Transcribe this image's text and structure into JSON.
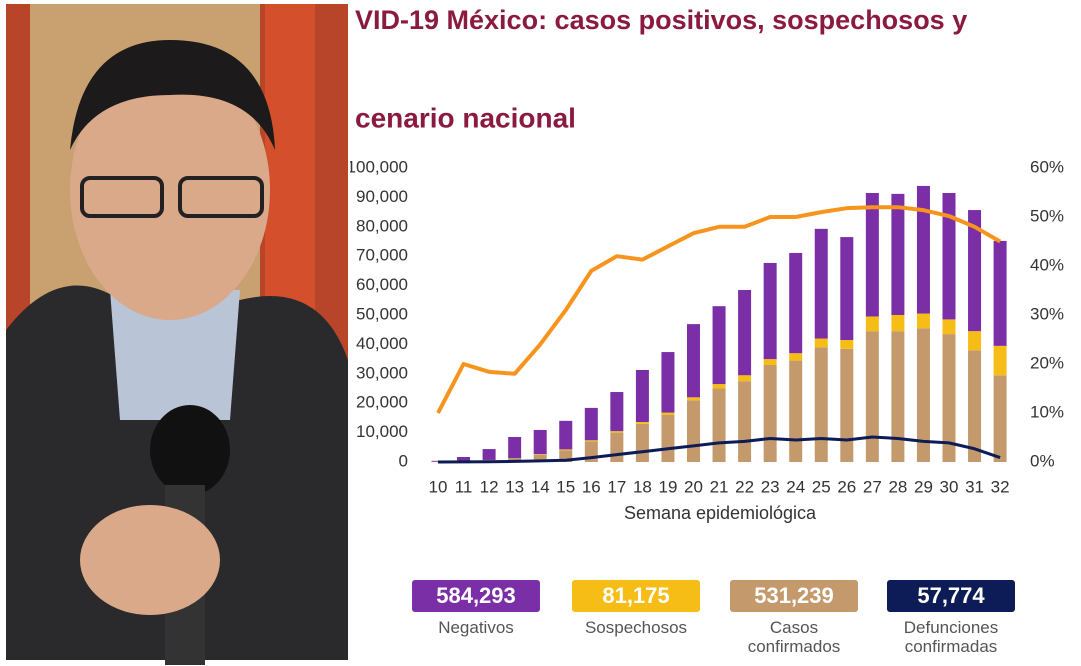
{
  "chart_data": {
    "type": "bar",
    "title": "VID-19 México: casos positivos, sospechosos y",
    "subtitle": "cenario nacional",
    "x_label": "Semana epidemiológica",
    "categories": [
      "10",
      "11",
      "12",
      "13",
      "14",
      "15",
      "16",
      "17",
      "18",
      "19",
      "20",
      "21",
      "22",
      "23",
      "24",
      "25",
      "26",
      "27",
      "28",
      "29",
      "30",
      "31",
      "32"
    ],
    "ylim": [
      0,
      100000
    ],
    "yticks": [
      0,
      {
        "value": 10000,
        "label": "10,000"
      },
      {
        "value": 20000,
        "label": "20,000"
      },
      {
        "value": 30000,
        "label": "30,000"
      },
      {
        "value": 40000,
        "label": "40,000"
      },
      {
        "value": 50000,
        "label": "50,000"
      },
      {
        "value": 60000,
        "label": "60,000"
      },
      {
        "value": 70000,
        "label": "70,000"
      },
      {
        "value": 80000,
        "label": "80,000"
      },
      {
        "value": 90000,
        "label": "90,000"
      },
      {
        "value": 100000,
        "label": "100,000"
      }
    ],
    "y2lim": [
      0,
      60
    ],
    "y2ticks": [
      {
        "value": 0,
        "label": "0%"
      },
      {
        "value": 10,
        "label": "10%"
      },
      {
        "value": 20,
        "label": "20%"
      },
      {
        "value": 30,
        "label": "30%"
      },
      {
        "value": 40,
        "label": "40%"
      },
      {
        "value": 50,
        "label": "50%"
      },
      {
        "value": 60,
        "label": "60%"
      }
    ],
    "series": [
      {
        "name": "Negativos",
        "color": "#7b2fa6",
        "total": "584,293",
        "values": [
          300,
          1300,
          3700,
          7200,
          8200,
          9700,
          11000,
          13300,
          17700,
          20600,
          24900,
          26500,
          29000,
          32700,
          34100,
          37300,
          35000,
          42000,
          41200,
          43400,
          43000,
          41200,
          35700
        ]
      },
      {
        "name": "Sospechosos",
        "color": "#f6bd16",
        "total": "81,175",
        "values": [
          0,
          100,
          100,
          100,
          200,
          300,
          400,
          500,
          600,
          800,
          1000,
          1500,
          2000,
          2000,
          2500,
          3000,
          3000,
          5000,
          5500,
          5000,
          5000,
          6500,
          10000
        ]
      },
      {
        "name": "Casos confirmados",
        "color": "#c49a6c",
        "total": "531,239",
        "values": [
          100,
          300,
          600,
          1200,
          2500,
          4000,
          7000,
          10000,
          13000,
          16000,
          21000,
          25000,
          27500,
          33000,
          34500,
          39000,
          38500,
          44500,
          44500,
          45500,
          43500,
          38000,
          29500
        ]
      },
      {
        "name": "Defunciones confirmadas",
        "color": "#0d1b57",
        "total": "57,774",
        "type": "line",
        "values": [
          0,
          50,
          100,
          200,
          400,
          600,
          1500,
          2500,
          3500,
          4500,
          5500,
          6500,
          7000,
          8000,
          7500,
          8000,
          7500,
          8500,
          8000,
          7000,
          6500,
          4500,
          1500
        ]
      },
      {
        "color": "#f7941d",
        "type": "line",
        "axis": "y2",
        "values": [
          10,
          20,
          18.4,
          18,
          24,
          31,
          39,
          42,
          41.3,
          44,
          46.7,
          48,
          48,
          50,
          50,
          51,
          51.8,
          52,
          52,
          51.4,
          50.2,
          48,
          45
        ]
      }
    ]
  }
}
